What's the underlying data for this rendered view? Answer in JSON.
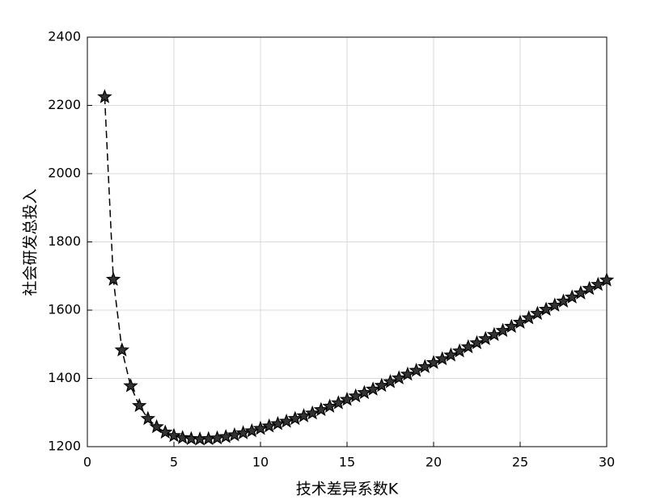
{
  "chart_data": {
    "type": "line",
    "x_label": "技术差异系数K",
    "y_label": "社会研发总投入",
    "x": [
      1,
      1.5,
      2,
      2.5,
      3,
      3.5,
      4,
      4.5,
      5,
      5.5,
      6,
      6.5,
      7,
      7.5,
      8,
      8.5,
      9,
      9.5,
      10,
      10.5,
      11,
      11.5,
      12,
      12.5,
      13,
      13.5,
      14,
      14.5,
      15,
      15.5,
      16,
      16.5,
      17,
      17.5,
      18,
      18.5,
      19,
      19.5,
      20,
      20.5,
      21,
      21.5,
      22,
      22.5,
      23,
      23.5,
      24,
      24.5,
      25,
      25.5,
      26,
      26.5,
      27,
      27.5,
      28,
      28.5,
      29,
      29.5,
      30
    ],
    "series": [
      {
        "color": "#000000",
        "values": [
          2225,
          1690,
          1483,
          1378,
          1320,
          1282,
          1258,
          1242,
          1232,
          1226,
          1223,
          1222,
          1223,
          1225,
          1229,
          1234,
          1240,
          1246,
          1253,
          1260,
          1267,
          1274,
          1282,
          1290,
          1298,
          1308,
          1318,
          1328,
          1338,
          1348,
          1358,
          1368,
          1379,
          1390,
          1401,
          1412,
          1423,
          1434,
          1446,
          1457,
          1468,
          1480,
          1492,
          1504,
          1516,
          1528,
          1540,
          1552,
          1564,
          1577,
          1590,
          1602,
          1614,
          1626,
          1638,
          1650,
          1663,
          1675,
          1688
        ]
      }
    ],
    "xlim": [
      0,
      30
    ],
    "ylim": [
      1200,
      2400
    ],
    "xticks": [
      0,
      5,
      10,
      15,
      20,
      25,
      30
    ],
    "yticks": [
      1200,
      1400,
      1600,
      1800,
      2000,
      2200,
      2400
    ],
    "grid": true
  }
}
